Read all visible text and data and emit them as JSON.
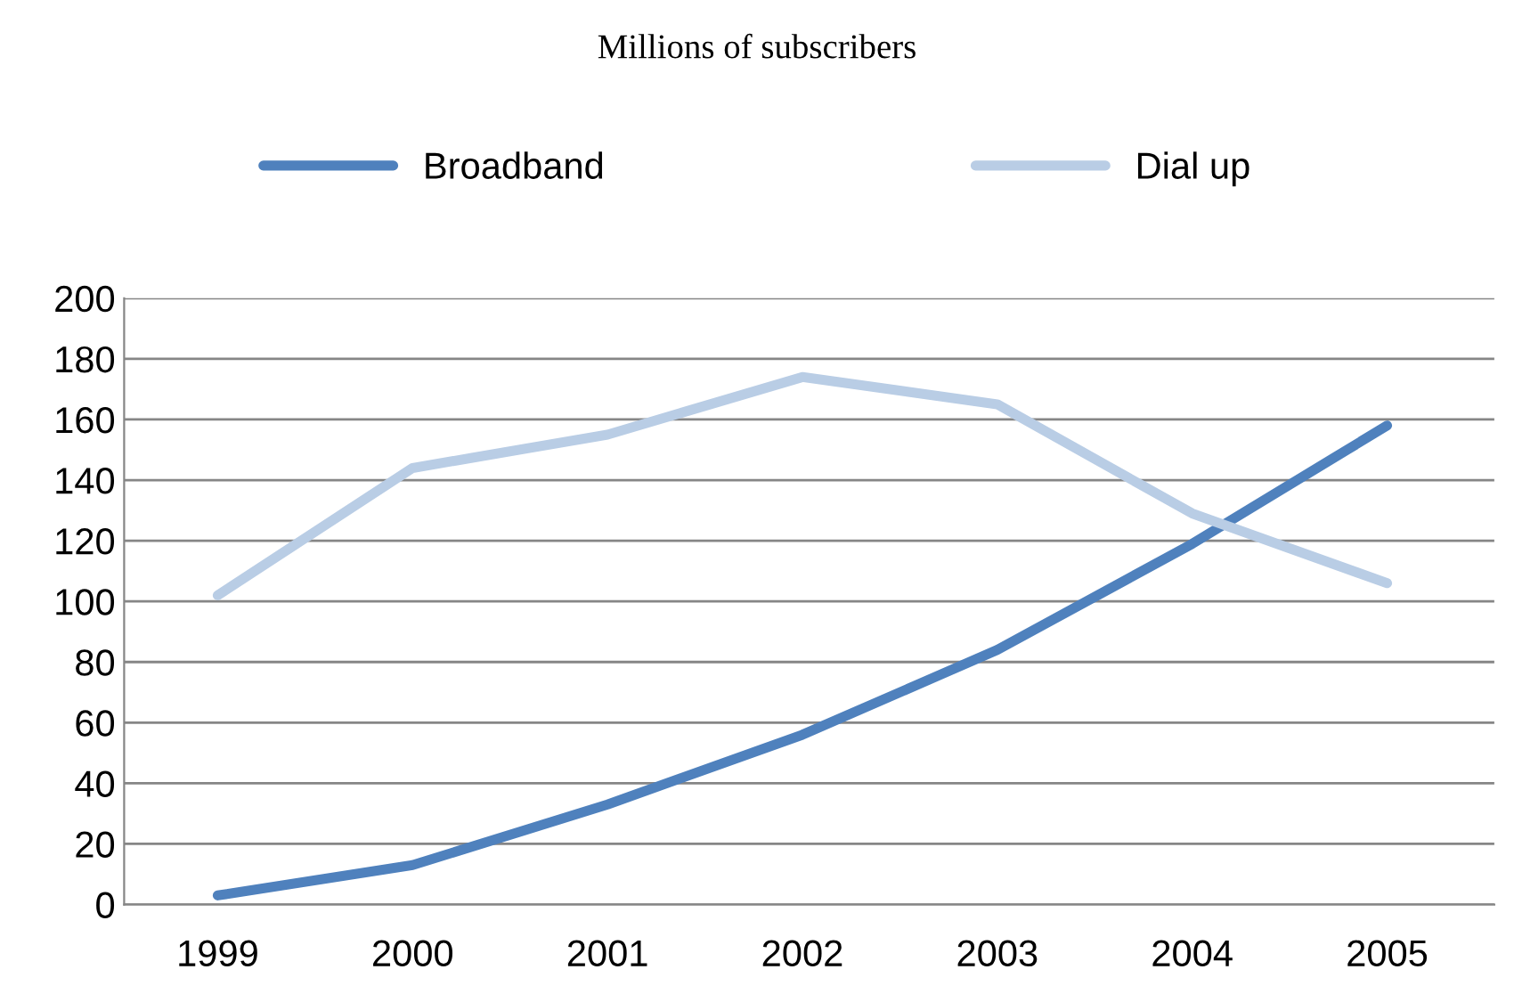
{
  "chart_data": {
    "type": "line",
    "title": "Millions of subscribers",
    "categories": [
      "1999",
      "2000",
      "2001",
      "2002",
      "2003",
      "2004",
      "2005"
    ],
    "series": [
      {
        "name": "Broadband",
        "color": "#4f81bd",
        "values": [
          3,
          13,
          33,
          56,
          84,
          119,
          158
        ]
      },
      {
        "name": "Dial up",
        "color": "#b9cde5",
        "values": [
          102,
          144,
          155,
          174,
          165,
          129,
          106
        ]
      }
    ],
    "ylim": [
      0,
      200
    ],
    "yticks": [
      0,
      20,
      40,
      60,
      80,
      100,
      120,
      140,
      160,
      180,
      200
    ],
    "grid": "y",
    "legend": "top",
    "marker": "none",
    "line_style": "solid"
  }
}
